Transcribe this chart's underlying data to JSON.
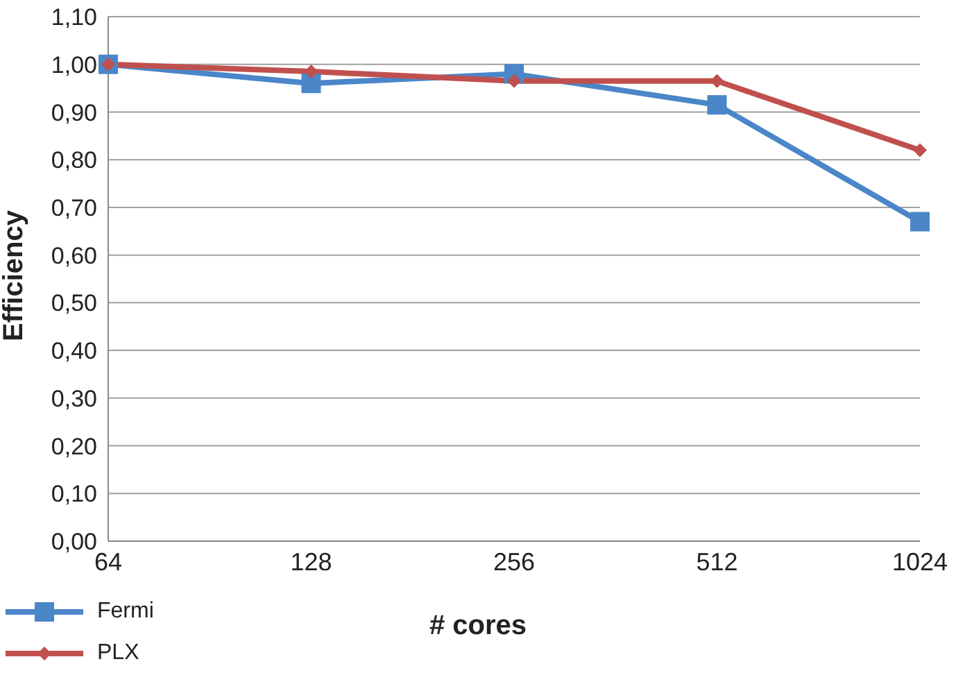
{
  "chart_data": {
    "type": "line",
    "xlabel": "# cores",
    "ylabel": "Efficiency",
    "categories": [
      "64",
      "128",
      "256",
      "512",
      "1024"
    ],
    "series": [
      {
        "name": "Fermi",
        "color": "#4a86c8",
        "marker": "square",
        "values": [
          1.0,
          0.96,
          0.98,
          0.915,
          0.67
        ]
      },
      {
        "name": "PLX",
        "color": "#c0504d",
        "marker": "diamond",
        "values": [
          1.0,
          0.985,
          0.965,
          0.965,
          0.82
        ]
      }
    ],
    "ylim": [
      0,
      1.1
    ],
    "yticks": [
      {
        "value": 0,
        "label": "0,00"
      },
      {
        "value": 0.1,
        "label": "0,10"
      },
      {
        "value": 0.2,
        "label": "0,20"
      },
      {
        "value": 0.3,
        "label": "0,30"
      },
      {
        "value": 0.4,
        "label": "0,40"
      },
      {
        "value": 0.5,
        "label": "0,50"
      },
      {
        "value": 0.6,
        "label": "0,60"
      },
      {
        "value": 0.7,
        "label": "0,70"
      },
      {
        "value": 0.8,
        "label": "0,80"
      },
      {
        "value": 0.9,
        "label": "0,90"
      },
      {
        "value": 1.0,
        "label": "1,00"
      },
      {
        "value": 1.1,
        "label": "1,10"
      }
    ],
    "grid": "y",
    "legend": "bottom left",
    "line_style": "solid"
  }
}
